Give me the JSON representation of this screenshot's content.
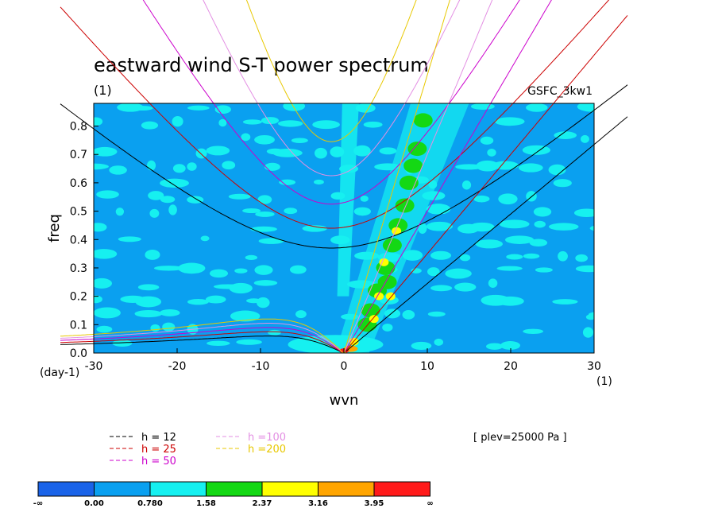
{
  "title": "eastward wind S-T power spectrum",
  "subtitle": "(1)",
  "dataset_label": "GSFC_3kw1",
  "plev_label": "[ plev=25000 Pa ]",
  "chart_data": {
    "type": "heatmap",
    "xlabel": "wvn",
    "ylabel": "freq",
    "x_unit_label": "(1)",
    "y_unit_label": "(day-1)",
    "xlim": [
      -30,
      30
    ],
    "ylim": [
      0,
      0.88
    ],
    "x_ticks": [
      -30,
      -20,
      -10,
      0,
      10,
      20,
      30
    ],
    "y_ticks": [
      0.0,
      0.1,
      0.2,
      0.3,
      0.4,
      0.5,
      0.6,
      0.7,
      0.8
    ],
    "colorbar": {
      "labels": [
        "-∞",
        "0.00",
        "0.780",
        "1.58",
        "2.37",
        "3.16",
        "3.95",
        "∞"
      ],
      "colors": [
        "#1a63e8",
        "#0aa0f0",
        "#16f0f0",
        "#14d814",
        "#ffff00",
        "#ffa500",
        "#ff1a1a"
      ]
    },
    "field_colors": {
      "background": "#0aa0f0",
      "cyan": "#16f0f0",
      "green": "#14d814",
      "yellow": "#ffff00",
      "orange": "#ffa500",
      "red": "#ff1a1a"
    },
    "dispersion_curves": [
      {
        "label": "h = 12",
        "color": "#000000"
      },
      {
        "label": "h = 25",
        "color": "#cc0000"
      },
      {
        "label": "h = 50",
        "color": "#cc00cc"
      },
      {
        "label": "h =100",
        "color": "#e38fe3"
      },
      {
        "label": "h =200",
        "color": "#e8c800"
      }
    ]
  }
}
